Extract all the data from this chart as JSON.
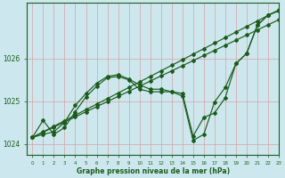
{
  "xlabel": "Graphe pression niveau de la mer (hPa)",
  "ylabel": "",
  "background_color": "#cce8ee",
  "grid_color": "#d9a0a0",
  "line_color": "#1a5c1a",
  "xlim": [
    -0.5,
    23
  ],
  "ylim": [
    1023.75,
    1027.3
  ],
  "yticks": [
    1024,
    1025,
    1026
  ],
  "xticks": [
    0,
    1,
    2,
    3,
    4,
    5,
    6,
    7,
    8,
    9,
    10,
    11,
    12,
    13,
    14,
    15,
    16,
    17,
    18,
    19,
    20,
    21,
    22,
    23
  ],
  "line_wavy1": [
    1024.15,
    1024.55,
    1024.22,
    1024.38,
    1024.75,
    1025.1,
    1025.35,
    1025.55,
    1025.58,
    1025.5,
    1025.28,
    1025.22,
    1025.22,
    1025.22,
    1025.18,
    1024.18,
    1024.62,
    1024.72,
    1025.08,
    1025.88,
    1026.12,
    1026.78,
    1027.02,
    1027.12
  ],
  "line_wavy2": [
    1024.15,
    1024.22,
    1024.28,
    1024.5,
    1024.9,
    1025.18,
    1025.42,
    1025.58,
    1025.62,
    1025.52,
    1025.38,
    1025.28,
    1025.28,
    1025.22,
    1025.12,
    1024.08,
    1024.22,
    1024.98,
    1025.32,
    1025.88,
    1026.12,
    1026.78,
    1027.02,
    1027.12
  ],
  "line_straight1": [
    1024.15,
    1024.28,
    1024.41,
    1024.54,
    1024.67,
    1024.8,
    1024.93,
    1025.06,
    1025.19,
    1025.32,
    1025.45,
    1025.58,
    1025.71,
    1025.84,
    1025.97,
    1026.1,
    1026.23,
    1026.36,
    1026.49,
    1026.62,
    1026.75,
    1026.88,
    1027.01,
    1027.14
  ],
  "line_straight2": [
    1024.15,
    1024.27,
    1024.39,
    1024.51,
    1024.63,
    1024.75,
    1024.87,
    1024.99,
    1025.11,
    1025.23,
    1025.35,
    1025.47,
    1025.59,
    1025.71,
    1025.83,
    1025.95,
    1026.07,
    1026.19,
    1026.31,
    1026.43,
    1026.55,
    1026.67,
    1026.79,
    1026.91
  ]
}
